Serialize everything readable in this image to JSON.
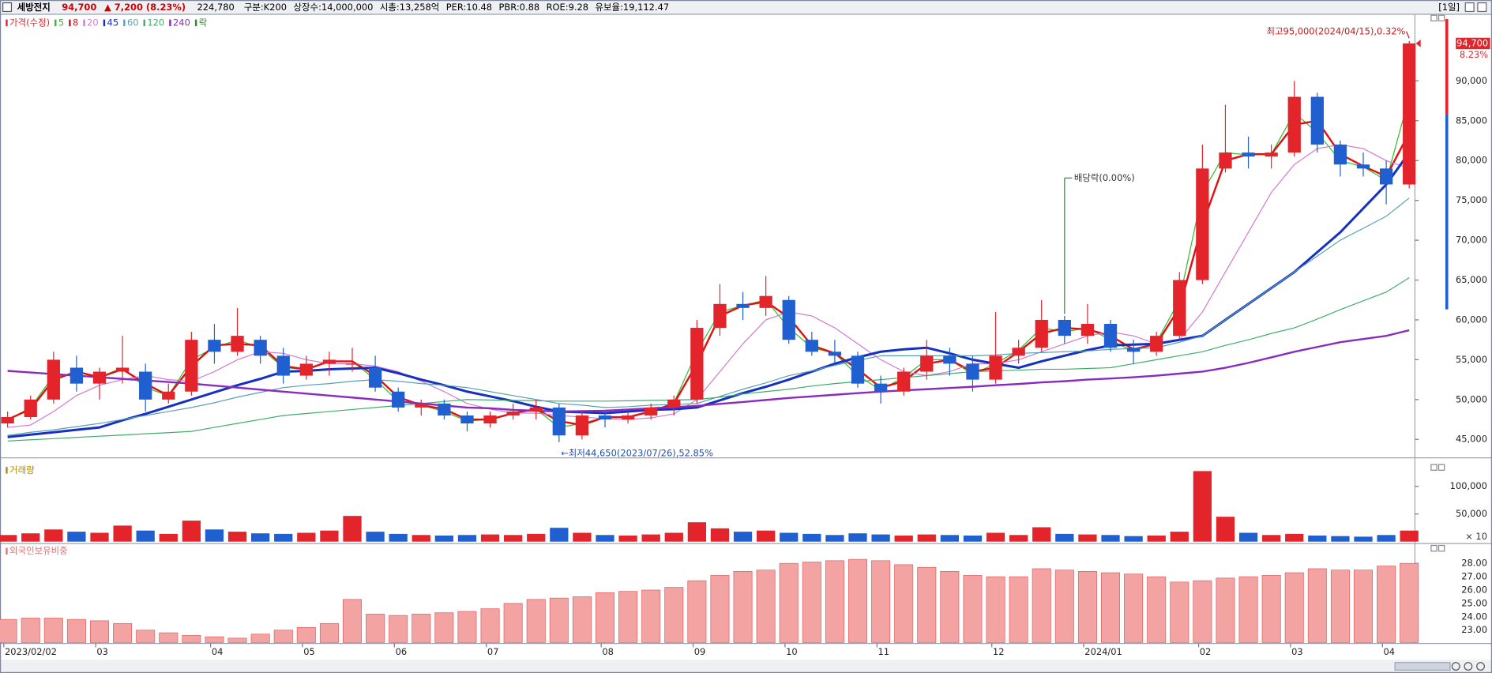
{
  "header": {
    "name": "세방전지",
    "price": "94,700",
    "change": "▲ 7,200 (8.23%)",
    "volume": "224,780",
    "info": [
      "구분:K200",
      "상장수:14,000,000",
      "시총:13,258억",
      "PER:10.48",
      "PBR:0.88",
      "ROE:9.28",
      "유보율:19,112.47"
    ],
    "period": "[1일]"
  },
  "chart_data": [
    {
      "type": "candlestick",
      "name": "가격(수정)",
      "ex_label": "락",
      "event_color": "#2e8b2e",
      "up_color": "#e3242b",
      "down_color": "#1f5fcf",
      "categories": [
        "2023/02/02",
        null,
        null,
        null,
        "03",
        null,
        null,
        null,
        null,
        "04",
        null,
        null,
        null,
        "05",
        null,
        null,
        null,
        "06",
        null,
        null,
        null,
        "07",
        null,
        null,
        null,
        null,
        "08",
        null,
        null,
        null,
        "09",
        null,
        null,
        null,
        "10",
        null,
        null,
        null,
        "11",
        null,
        null,
        null,
        null,
        "12",
        null,
        null,
        null,
        "2024/01",
        null,
        null,
        null,
        null,
        "02",
        null,
        null,
        null,
        "03",
        null,
        null,
        null,
        "04",
        null
      ],
      "open": [
        47000,
        47800,
        50000,
        54000,
        52000,
        53500,
        53500,
        50000,
        51000,
        57500,
        56000,
        57500,
        55500,
        53000,
        54500,
        54500,
        54000,
        51000,
        49000,
        49500,
        48000,
        47000,
        48000,
        48500,
        49000,
        45500,
        48000,
        47500,
        48000,
        49000,
        50000,
        59000,
        62000,
        61500,
        62500,
        57500,
        56000,
        55500,
        52000,
        51000,
        53500,
        55500,
        54500,
        52500,
        55500,
        56500,
        60000,
        58000,
        59500,
        56500,
        56000,
        58000,
        65000,
        79000,
        81000,
        80500,
        81000,
        88000,
        82000,
        79500,
        79000,
        77000
      ],
      "high": [
        48500,
        50500,
        56000,
        55500,
        54000,
        58000,
        54500,
        52000,
        58500,
        59500,
        61500,
        58000,
        56500,
        55500,
        56000,
        56500,
        55500,
        51500,
        50000,
        50000,
        48500,
        48500,
        49500,
        50000,
        49500,
        48500,
        48500,
        48500,
        49500,
        50500,
        60000,
        64500,
        63500,
        65500,
        63000,
        58500,
        57500,
        56000,
        53000,
        54000,
        57500,
        56500,
        55500,
        61000,
        57500,
        62500,
        60500,
        62000,
        60000,
        57500,
        58500,
        66000,
        82000,
        87000,
        83000,
        82000,
        90000,
        88500,
        82500,
        81000,
        80000,
        95000
      ],
      "low": [
        46500,
        47500,
        49500,
        51000,
        50000,
        52000,
        48500,
        49500,
        50500,
        54500,
        55500,
        54500,
        52000,
        52500,
        53000,
        53500,
        51000,
        48500,
        48000,
        47500,
        46000,
        46500,
        47500,
        47500,
        44650,
        45000,
        46500,
        47000,
        47500,
        48000,
        49500,
        58000,
        60000,
        60500,
        57000,
        55500,
        54500,
        51500,
        49500,
        50500,
        52500,
        53000,
        51000,
        52000,
        54500,
        56000,
        57000,
        57000,
        56000,
        54500,
        55500,
        57500,
        64500,
        78500,
        79000,
        79000,
        80500,
        81000,
        78000,
        78000,
        74500,
        76500
      ],
      "close": [
        47800,
        50000,
        55000,
        52000,
        53500,
        54000,
        50000,
        51000,
        57500,
        56000,
        58000,
        55500,
        53000,
        54500,
        55000,
        54500,
        51500,
        49000,
        49500,
        48000,
        47000,
        48000,
        48500,
        49000,
        45500,
        48000,
        47500,
        48000,
        49000,
        50000,
        59000,
        62000,
        61500,
        63000,
        57500,
        56000,
        55500,
        52000,
        51000,
        53500,
        55500,
        54500,
        52500,
        55500,
        56500,
        60000,
        58000,
        59500,
        56500,
        56000,
        58000,
        65000,
        79000,
        81000,
        80500,
        81000,
        88000,
        82000,
        79500,
        79000,
        77000,
        94700
      ],
      "series": [
        {
          "name": "5",
          "color": "#2ebd2e",
          "line_width": 1,
          "values": [
            47400,
            49000,
            53000,
            53000,
            52800,
            54000,
            51500,
            50500,
            55000,
            56500,
            57500,
            56500,
            54000,
            53800,
            54800,
            54800,
            52500,
            49800,
            49300,
            48500,
            47300,
            47500,
            48300,
            48800,
            46500,
            47000,
            47800,
            47800,
            48500,
            49600,
            56000,
            61000,
            61800,
            62500,
            59000,
            56500,
            55800,
            53000,
            51200,
            52800,
            55000,
            55000,
            53200,
            54500,
            56200,
            59000,
            58500,
            59000,
            57500,
            56000,
            57200,
            62500,
            76000,
            81000,
            80700,
            80800,
            86000,
            83500,
            80000,
            79200,
            77500,
            88000
          ]
        },
        {
          "name": "8",
          "color": "#e01010",
          "line_width": 2,
          "values": [
            47500,
            48800,
            52500,
            53500,
            52800,
            53800,
            52000,
            50500,
            54200,
            56800,
            57000,
            56800,
            54200,
            53800,
            54800,
            54800,
            53000,
            50300,
            49300,
            48800,
            47500,
            47500,
            48300,
            48800,
            47300,
            46800,
            47800,
            47800,
            48500,
            49500,
            54500,
            60500,
            61800,
            62300,
            60300,
            56800,
            55800,
            53800,
            51500,
            52300,
            54500,
            55000,
            53500,
            54000,
            56000,
            58300,
            59000,
            58800,
            58000,
            56300,
            57000,
            61500,
            72000,
            80000,
            80800,
            80800,
            84500,
            85000,
            80800,
            79300,
            78000,
            83500
          ]
        },
        {
          "name": "20",
          "color": "#d27ad2",
          "line_width": 1,
          "values": [
            46500,
            46800,
            48500,
            50500,
            51800,
            52500,
            53000,
            52500,
            52300,
            53500,
            55000,
            56000,
            55800,
            55000,
            54500,
            54500,
            54200,
            53500,
            52300,
            51000,
            49500,
            48800,
            48300,
            48300,
            48000,
            47800,
            47600,
            47500,
            47700,
            48200,
            50000,
            53500,
            57000,
            60000,
            61000,
            60500,
            59000,
            57000,
            55000,
            53500,
            53000,
            53500,
            54500,
            54500,
            55000,
            56000,
            57000,
            58000,
            58500,
            58000,
            57000,
            57500,
            61000,
            66000,
            71000,
            76000,
            79500,
            81500,
            82000,
            81500,
            80000,
            79000
          ]
        },
        {
          "name": "45",
          "color": "#1630c0",
          "line_width": 2.5,
          "values": [
            45300,
            45600,
            45900,
            46200,
            46500,
            47400,
            48200,
            49100,
            50000,
            50900,
            51800,
            52600,
            53500,
            53600,
            53800,
            53900,
            54000,
            53300,
            52500,
            51800,
            51000,
            50400,
            49800,
            49100,
            48500,
            48400,
            48300,
            48500,
            48700,
            48800,
            49000,
            49900,
            50800,
            51600,
            52500,
            53500,
            54500,
            55300,
            56000,
            56300,
            56500,
            55800,
            55000,
            54500,
            54000,
            54800,
            55500,
            56200,
            56800,
            56900,
            57000,
            57500,
            58000,
            60000,
            62000,
            64000,
            66000,
            68500,
            71000,
            74000,
            77000,
            81000
          ]
        },
        {
          "name": "60",
          "color": "#5aa0b4",
          "line_width": 1,
          "values": [
            45500,
            45900,
            46200,
            46600,
            47000,
            47500,
            48000,
            48500,
            49000,
            49600,
            50300,
            50900,
            51500,
            51800,
            52000,
            52300,
            52500,
            52300,
            52000,
            51800,
            51500,
            51000,
            50500,
            50000,
            49500,
            49300,
            49000,
            49100,
            49300,
            49400,
            49500,
            50400,
            51300,
            52100,
            53000,
            53600,
            54300,
            54900,
            55500,
            55500,
            55500,
            55500,
            55500,
            55600,
            55800,
            55900,
            56000,
            56100,
            56300,
            56400,
            56500,
            57200,
            58000,
            60000,
            62000,
            64000,
            66000,
            68000,
            70000,
            71500,
            73000,
            75300
          ]
        },
        {
          "name": "120",
          "color": "#3fae6a",
          "line_width": 1,
          "values": [
            44800,
            44950,
            45100,
            45250,
            45400,
            45550,
            45700,
            45850,
            46000,
            46500,
            47000,
            47500,
            48000,
            48250,
            48500,
            48750,
            49000,
            49250,
            49500,
            49750,
            50000,
            49950,
            49900,
            49850,
            49800,
            49800,
            49800,
            49850,
            49900,
            49950,
            50000,
            50300,
            50700,
            51000,
            51300,
            51700,
            52000,
            52250,
            52500,
            52750,
            53000,
            53250,
            53500,
            53600,
            53700,
            53800,
            53800,
            53900,
            54000,
            54500,
            55000,
            55500,
            56000,
            56800,
            57500,
            58300,
            59000,
            60100,
            61300,
            62400,
            63500,
            65300
          ]
        },
        {
          "name": "240",
          "color": "#8a2bc0",
          "line_width": 2,
          "values": [
            53600,
            53400,
            53200,
            53000,
            52800,
            52600,
            52400,
            52200,
            52000,
            51750,
            51500,
            51250,
            51000,
            50750,
            50500,
            50250,
            50000,
            49750,
            49500,
            49250,
            49000,
            48900,
            48700,
            48600,
            48500,
            48550,
            48600,
            48750,
            48900,
            49050,
            49200,
            49450,
            49700,
            49950,
            50200,
            50400,
            50600,
            50800,
            51000,
            51150,
            51300,
            51450,
            51600,
            51800,
            51950,
            52150,
            52300,
            52500,
            52650,
            52800,
            53000,
            53250,
            53500,
            54000,
            54600,
            55300,
            56000,
            56600,
            57200,
            57600,
            58000,
            58700
          ]
        }
      ],
      "annotations": {
        "high": "최고95,000(2024/04/15),0.32%",
        "low": "←최저44,650(2023/07/26),52.85%",
        "event": "배당락(0.00%)"
      },
      "last_price_label": "94,700",
      "last_change_label": "8.23%",
      "ylim": [
        42800,
        98000
      ],
      "yticks": [
        {
          "value": 45000,
          "label": "45,000"
        },
        {
          "value": 50000,
          "label": "50,000"
        },
        {
          "value": 55000,
          "label": "55,000"
        },
        {
          "value": 60000,
          "label": "60,000"
        },
        {
          "value": 65000,
          "label": "65,000"
        },
        {
          "value": 70000,
          "label": "70,000"
        },
        {
          "value": 75000,
          "label": "75,000"
        },
        {
          "value": 80000,
          "label": "80,000"
        },
        {
          "value": 85000,
          "label": "85,000"
        },
        {
          "value": 90000,
          "label": "90,000"
        }
      ]
    },
    {
      "type": "bar",
      "title": "거래량",
      "title_color": "#b08a00",
      "unit_label": "× 10",
      "values": [
        12000,
        15000,
        22000,
        18000,
        16000,
        29000,
        20000,
        14000,
        38000,
        22000,
        18000,
        15000,
        14000,
        16000,
        20000,
        46500,
        18000,
        14000,
        12000,
        11000,
        12000,
        13000,
        12000,
        14000,
        25000,
        16000,
        12000,
        11000,
        13000,
        16000,
        35000,
        24000,
        18000,
        20000,
        16000,
        14000,
        12000,
        15000,
        13000,
        11000,
        13000,
        12000,
        11000,
        16000,
        12000,
        26000,
        14000,
        13000,
        12000,
        10000,
        11000,
        18000,
        127600,
        45000,
        16000,
        12000,
        14000,
        11000,
        10000,
        9000,
        12000,
        20000
      ],
      "ylim": [
        0,
        136000
      ],
      "yticks": [
        {
          "value": 50000,
          "label": "50,000"
        },
        {
          "value": 100000,
          "label": "100,000"
        }
      ]
    },
    {
      "type": "bar",
      "title": "외국인보유비중",
      "title_color": "#e07070",
      "color": "#f4a3a3",
      "edge_color": "#e06060",
      "values": [
        23.8,
        23.9,
        23.9,
        23.8,
        23.7,
        23.5,
        23.0,
        22.8,
        22.6,
        22.5,
        22.4,
        22.7,
        23.0,
        23.2,
        23.5,
        25.3,
        24.2,
        24.1,
        24.2,
        24.3,
        24.4,
        24.6,
        25.0,
        25.3,
        25.4,
        25.5,
        25.8,
        25.9,
        26.0,
        26.2,
        26.7,
        27.1,
        27.4,
        27.5,
        28.0,
        28.1,
        28.2,
        28.3,
        28.2,
        27.9,
        27.7,
        27.4,
        27.1,
        27.0,
        27.0,
        27.6,
        27.5,
        27.4,
        27.3,
        27.2,
        27.0,
        26.6,
        26.7,
        26.9,
        27.0,
        27.1,
        27.3,
        27.6,
        27.5,
        27.5,
        27.8,
        28.0
      ],
      "ylim": [
        22.07,
        29.2
      ],
      "yticks": [
        {
          "value": 23,
          "label": "23.00"
        },
        {
          "value": 24,
          "label": "24.00"
        },
        {
          "value": 25,
          "label": "25.00"
        },
        {
          "value": 26,
          "label": "26.00"
        },
        {
          "value": 27,
          "label": "27.00"
        },
        {
          "value": 28,
          "label": "28.00"
        }
      ]
    }
  ]
}
